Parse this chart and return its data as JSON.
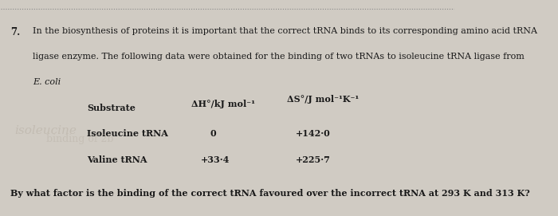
{
  "bg_color": "#d0cbc3",
  "text_color": "#1a1a1a",
  "question_number": "7.",
  "line1": "In the biosynthesis of proteins it is important that the correct tRNA binds to its corresponding amino acid tRNA",
  "line2": "ligase enzyme. The following data were obtained for the binding of two tRNAs to isoleucine tRNA ligase from",
  "line3": "E. coli",
  "col_header_substrate": "Substrate",
  "col_header_dH": "ΔH°/kJ mol⁻¹",
  "col_header_dS": "ΔS°/J mol⁻¹K⁻¹",
  "row1_substrate": "Isoleucine tRNA",
  "row1_dH": "0",
  "row1_dS": "+142·0",
  "row2_substrate": "Valine tRNA",
  "row2_dH": "+33·4",
  "row2_dS": "+225·7",
  "question_bottom": "By what factor is the binding of the correct tRNA favoured over the incorrect tRNA at 293 K and 313 K?",
  "watermark_text": "isoleucine",
  "watermark_text2": "binding of 2b"
}
